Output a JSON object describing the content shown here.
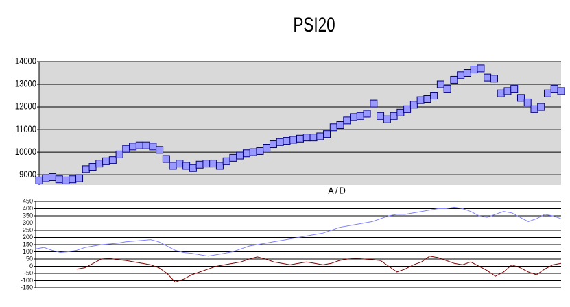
{
  "chart_data": [
    {
      "type": "line",
      "title": "PSI20",
      "marker": "square",
      "color": "#9999ff",
      "edge_color": "#000080",
      "background": "#d9d9d9",
      "ylim": [
        8550,
        14000
      ],
      "yticks": [
        9000,
        10000,
        11000,
        12000,
        13000,
        14000
      ],
      "grid": true,
      "series": [
        {
          "values": [
            8750,
            8850,
            8900,
            8800,
            8750,
            8800,
            8850,
            9250,
            9350,
            9500,
            9600,
            9650,
            9900,
            10150,
            10250,
            10300,
            10300,
            10250,
            10100,
            9700,
            9400,
            9500,
            9400,
            9300,
            9450,
            9500,
            9500,
            9400,
            9600,
            9750,
            9850,
            9950,
            10000,
            10050,
            10200,
            10350,
            10450,
            10500,
            10550,
            10600,
            10650,
            10650,
            10700,
            10800,
            11100,
            11200,
            11400,
            11550,
            11600,
            11700,
            12150,
            11600,
            11450,
            11600,
            11750,
            11900,
            12100,
            12300,
            12350,
            12500,
            13000,
            12800,
            13200,
            13400,
            13500,
            13650,
            13700,
            13300,
            13250,
            12600,
            12700,
            12800,
            12400,
            12200,
            11900,
            12000,
            12600,
            12800,
            12700
          ]
        }
      ]
    },
    {
      "type": "line",
      "title": "A/D",
      "background": "#ffffff",
      "ylim": [
        -150,
        450
      ],
      "yticks": [
        -150,
        -100,
        -50,
        0,
        50,
        100,
        150,
        200,
        250,
        300,
        350,
        400,
        450
      ],
      "grid": true,
      "series": [
        {
          "color": "#8080ff",
          "values": [
            120,
            130,
            110,
            95,
            100,
            110,
            130,
            140,
            150,
            155,
            160,
            170,
            175,
            180,
            185,
            170,
            140,
            110,
            95,
            90,
            80,
            70,
            80,
            90,
            100,
            120,
            140,
            150,
            160,
            170,
            180,
            190,
            200,
            210,
            220,
            230,
            250,
            270,
            280,
            290,
            300,
            310,
            330,
            350,
            360,
            360,
            370,
            380,
            390,
            400,
            400,
            410,
            400,
            380,
            350,
            340,
            360,
            380,
            370,
            340,
            310,
            330,
            360,
            350,
            330
          ]
        },
        {
          "color": "#800000",
          "values": [
            null,
            null,
            null,
            null,
            null,
            -20,
            -10,
            20,
            50,
            55,
            45,
            40,
            30,
            20,
            10,
            -10,
            -50,
            -110,
            -90,
            -60,
            -40,
            -20,
            0,
            10,
            20,
            30,
            50,
            65,
            50,
            30,
            20,
            10,
            20,
            30,
            20,
            10,
            20,
            40,
            50,
            55,
            50,
            45,
            40,
            0,
            -40,
            -20,
            10,
            30,
            70,
            60,
            40,
            20,
            10,
            30,
            0,
            -30,
            -70,
            -40,
            10,
            -10,
            -40,
            -60,
            -20,
            10,
            20
          ]
        }
      ]
    }
  ]
}
